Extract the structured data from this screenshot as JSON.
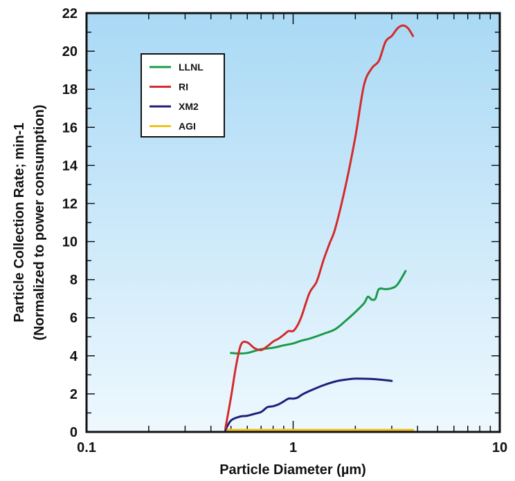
{
  "chart_data": {
    "type": "line",
    "xscale": "log",
    "xlim": [
      0.1,
      10
    ],
    "ylim": [
      0,
      22
    ],
    "xticks": [
      {
        "value": 0.1,
        "label": "0.1"
      },
      {
        "value": 1,
        "label": "1"
      },
      {
        "value": 10,
        "label": "10"
      }
    ],
    "yticks": [
      {
        "value": 0,
        "label": "0"
      },
      {
        "value": 2,
        "label": "2"
      },
      {
        "value": 4,
        "label": "4"
      },
      {
        "value": 6,
        "label": "6"
      },
      {
        "value": 8,
        "label": "8"
      },
      {
        "value": 10,
        "label": "10"
      },
      {
        "value": 12,
        "label": "12"
      },
      {
        "value": 14,
        "label": "14"
      },
      {
        "value": 16,
        "label": "16"
      },
      {
        "value": 18,
        "label": "18"
      },
      {
        "value": 20,
        "label": "20"
      },
      {
        "value": 22,
        "label": "22"
      }
    ],
    "xlabel": "Particle Diameter (µm)",
    "ylabel_line1": "Particle Collection Rate; min-1",
    "ylabel_line2": "(Normalized to power consumption)",
    "legend_position": "top-left",
    "grid": false,
    "background_gradient": [
      "#a9d9f5",
      "#eef8fe"
    ],
    "series": [
      {
        "name": "LLNL",
        "color": "#1a9a4a",
        "x": [
          0.5,
          0.55,
          0.6,
          0.65,
          0.7,
          0.8,
          0.9,
          1.0,
          1.1,
          1.2,
          1.4,
          1.6,
          1.8,
          2.0,
          2.2,
          2.3,
          2.4,
          2.5,
          2.6,
          2.8,
          3.0,
          3.2,
          3.5
        ],
        "y": [
          4.15,
          4.12,
          4.15,
          4.25,
          4.35,
          4.42,
          4.55,
          4.65,
          4.8,
          4.9,
          5.15,
          5.4,
          5.85,
          6.3,
          6.75,
          7.1,
          6.95,
          7.0,
          7.5,
          7.5,
          7.55,
          7.75,
          8.45
        ]
      },
      {
        "name": "RI",
        "color": "#d42a2a",
        "x": [
          0.47,
          0.5,
          0.53,
          0.56,
          0.6,
          0.65,
          0.7,
          0.75,
          0.8,
          0.85,
          0.9,
          0.95,
          1.0,
          1.05,
          1.1,
          1.2,
          1.3,
          1.4,
          1.5,
          1.6,
          1.8,
          2.0,
          2.2,
          2.4,
          2.6,
          2.8,
          3.0,
          3.2,
          3.4,
          3.6,
          3.8
        ],
        "y": [
          0.2,
          1.8,
          3.5,
          4.6,
          4.7,
          4.4,
          4.3,
          4.5,
          4.75,
          4.9,
          5.1,
          5.3,
          5.3,
          5.6,
          6.1,
          7.3,
          7.9,
          9.0,
          9.9,
          10.7,
          13.0,
          15.5,
          18.2,
          19.1,
          19.5,
          20.5,
          20.8,
          21.2,
          21.35,
          21.2,
          20.8
        ]
      },
      {
        "name": "XM2",
        "color": "#1e1e7a",
        "x": [
          0.47,
          0.5,
          0.55,
          0.6,
          0.65,
          0.7,
          0.75,
          0.8,
          0.85,
          0.9,
          0.95,
          1.0,
          1.05,
          1.1,
          1.2,
          1.4,
          1.6,
          1.8,
          2.0,
          2.4,
          2.8,
          3.0
        ],
        "y": [
          0.1,
          0.6,
          0.8,
          0.85,
          0.95,
          1.05,
          1.3,
          1.35,
          1.45,
          1.6,
          1.75,
          1.75,
          1.8,
          1.95,
          2.15,
          2.45,
          2.65,
          2.75,
          2.8,
          2.78,
          2.72,
          2.68
        ]
      },
      {
        "name": "AGI",
        "color": "#f2c21a",
        "x": [
          0.47,
          1.0,
          2.0,
          3.8
        ],
        "y": [
          0.1,
          0.1,
          0.1,
          0.1
        ]
      }
    ]
  }
}
